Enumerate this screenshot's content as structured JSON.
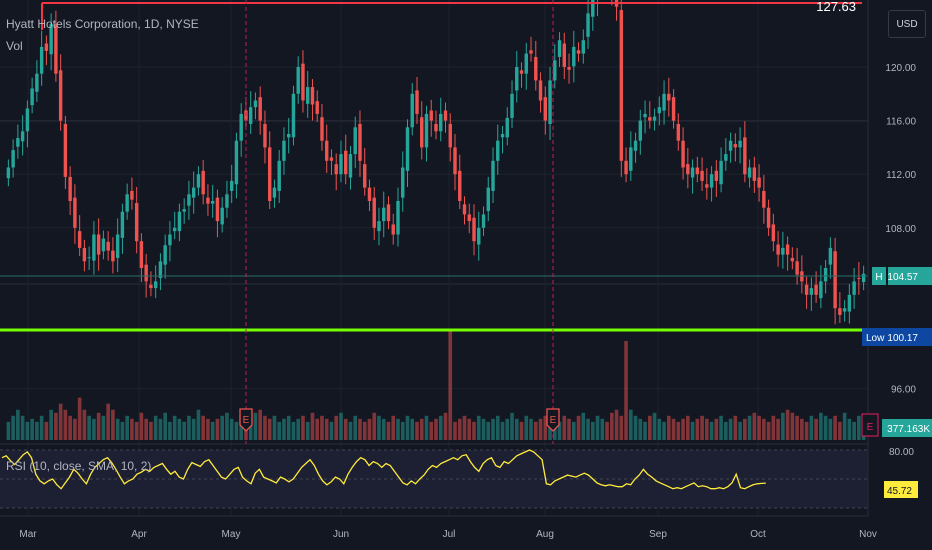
{
  "header": {
    "title": "Hyatt Hotels Corporation, 1D, NYSE",
    "volume_label": "Vol",
    "rsi_label": "RSI (10, close, SMA, 10, 2)",
    "currency": "USD"
  },
  "price_labels": {
    "resistance": "127.63",
    "current_prefix": "H",
    "current": "104.57",
    "low_prefix": "Low",
    "low": "100.17",
    "volume": "377.163K",
    "rsi_current": "45.72",
    "rsi_level": "80.00",
    "earnings_marker": "E"
  },
  "colors": {
    "background": "#131722",
    "up": "#26a69a",
    "down": "#ef5350",
    "resistance_line": "#f23645",
    "support_line": "#76ff03",
    "rsi_line": "#ffeb3b",
    "earnings": "#e91e63"
  },
  "chart_data": {
    "type": "candlestick",
    "price_ticks": [
      "120.00",
      "116.00",
      "112.00",
      "108.00",
      "96.00"
    ],
    "price_tick_values": [
      120,
      116,
      112,
      108,
      96
    ],
    "x_ticks": [
      "Mar",
      "Apr",
      "May",
      "Jun",
      "Jul",
      "Aug",
      "Sep",
      "Oct",
      "Nov"
    ],
    "resistance_level": 127.63,
    "support_level": 100.17,
    "last_price": 104.57,
    "last_volume": "377.163K",
    "rsi_last": 45.72,
    "rsi_bands": [
      80,
      50,
      20
    ],
    "earnings_months": [
      "May",
      "Aug"
    ],
    "close": [
      112.5,
      113.8,
      114.7,
      115.2,
      116.9,
      118.4,
      119.5,
      121.5,
      121.2,
      123.2,
      119.5,
      116.0,
      111.8,
      110.0,
      108.0,
      106.5,
      105.5,
      105.8,
      107.5,
      106.0,
      107.2,
      106.3,
      105.5,
      107.5,
      109.2,
      110.5,
      110.1,
      107.0,
      105.0,
      104.0,
      103.5,
      104.0,
      105.5,
      106.7,
      107.5,
      108.0,
      109.2,
      109.4,
      110.5,
      111.0,
      112.0,
      110.5,
      109.8,
      110.0,
      108.5,
      109.5,
      110.5,
      111.5,
      114.5,
      116.5,
      116.0,
      117.0,
      117.5,
      116.0,
      114.0,
      110.0,
      111.0,
      113.0,
      114.5,
      115.0,
      118.0,
      120.0,
      117.5,
      118.5,
      117.2,
      116.5,
      114.5,
      113.0,
      113.0,
      112.0,
      113.5,
      112.0,
      113.5,
      115.5,
      113.0,
      111.0,
      110.0,
      108.0,
      108.5,
      109.5,
      108.5,
      107.5,
      110.0,
      112.5,
      115.5,
      118.0,
      116.5,
      114.0,
      116.5,
      116.0,
      115.2,
      116.5,
      116.0,
      114.0,
      112.0,
      110.0,
      109.0,
      108.5,
      107.0,
      108.0,
      109.0,
      111.0,
      113.0,
      114.5,
      115.0,
      116.2,
      118.0,
      120.0,
      119.5,
      121.0,
      121.0,
      119.0,
      117.5,
      116.0,
      119.0,
      120.5,
      122.0,
      120.0,
      119.8,
      121.5,
      121.0,
      122.0,
      124.0,
      125.0,
      126.0,
      127.0,
      126.5,
      125.5,
      124.5,
      113.0,
      112.0,
      114.0,
      114.5,
      116.0,
      116.5,
      116.0,
      116.3,
      117.0,
      118.0,
      117.5,
      116.0,
      114.5,
      112.5,
      112.0,
      112.5,
      112.0,
      111.5,
      111.0,
      112.0,
      111.5,
      113.0,
      113.5,
      114.5,
      114.0,
      114.5,
      112.0,
      112.5,
      111.5,
      111.0,
      109.5,
      108.0,
      107.0,
      106.0,
      106.5,
      106.0,
      105.5,
      104.5,
      104.0,
      103.0,
      103.5,
      103.0,
      104.0,
      105.0,
      106.5,
      102.0,
      101.5,
      102.0,
      103.0,
      104.0,
      104.2,
      104.57
    ],
    "volume_relative": [
      0.3,
      0.4,
      0.5,
      0.4,
      0.3,
      0.35,
      0.3,
      0.4,
      0.3,
      0.5,
      0.45,
      0.6,
      0.5,
      0.4,
      0.35,
      0.7,
      0.5,
      0.4,
      0.35,
      0.45,
      0.4,
      0.6,
      0.5,
      0.35,
      0.3,
      0.4,
      0.35,
      0.3,
      0.45,
      0.35,
      0.3,
      0.4,
      0.35,
      0.45,
      0.3,
      0.4,
      0.35,
      0.3,
      0.4,
      0.35,
      0.5,
      0.4,
      0.35,
      0.3,
      0.35,
      0.4,
      0.45,
      0.35,
      0.3,
      0.4,
      0.35,
      0.3,
      0.45,
      0.5,
      0.4,
      0.35,
      0.4,
      0.3,
      0.35,
      0.4,
      0.3,
      0.35,
      0.4,
      0.3,
      0.45,
      0.35,
      0.4,
      0.35,
      0.3,
      0.4,
      0.45,
      0.35,
      0.3,
      0.4,
      0.35,
      0.3,
      0.35,
      0.45,
      0.4,
      0.35,
      0.3,
      0.4,
      0.35,
      0.3,
      0.4,
      0.35,
      0.3,
      0.35,
      0.4,
      0.3,
      0.35,
      0.4,
      0.45,
      1.0,
      0.3,
      0.35,
      0.4,
      0.35,
      0.3,
      0.4,
      0.35,
      0.3,
      0.35,
      0.4,
      0.3,
      0.35,
      0.45,
      0.35,
      0.3,
      0.4,
      0.35,
      0.3,
      0.35,
      0.4,
      0.45,
      0.35,
      0.3,
      0.4,
      0.35,
      0.3,
      0.4,
      0.45,
      0.35,
      0.3,
      0.4,
      0.35,
      0.3,
      0.45,
      0.5,
      0.4,
      0.9,
      0.5,
      0.4,
      0.35,
      0.3,
      0.4,
      0.45,
      0.35,
      0.3,
      0.4,
      0.35,
      0.3,
      0.35,
      0.4,
      0.3,
      0.35,
      0.4,
      0.35,
      0.3,
      0.35,
      0.4,
      0.3,
      0.35,
      0.4,
      0.3,
      0.35,
      0.4,
      0.45,
      0.4,
      0.35,
      0.3,
      0.4,
      0.35,
      0.45,
      0.5,
      0.45,
      0.4,
      0.35,
      0.3,
      0.4,
      0.35,
      0.45,
      0.4,
      0.35,
      0.4,
      0.3,
      0.45,
      0.35,
      0.3,
      0.4,
      0.35,
      0.3,
      0.35,
      0.4,
      0.4,
      0.3
    ],
    "rsi": [
      72,
      74,
      69,
      65,
      70,
      75,
      78,
      72,
      55,
      48,
      45,
      48,
      50,
      44,
      40,
      46,
      52,
      60,
      56,
      50,
      45,
      55,
      62,
      66,
      70,
      72,
      67,
      60,
      52,
      45,
      48,
      50,
      55,
      57,
      60,
      58,
      62,
      64,
      66,
      60,
      55,
      58,
      52,
      50,
      60,
      67,
      65,
      63,
      68,
      70,
      64,
      58,
      52,
      50,
      55,
      60,
      62,
      52,
      48,
      45,
      56,
      60,
      52,
      50,
      48,
      46,
      52,
      50,
      47,
      50,
      56,
      62,
      66,
      70,
      64,
      55,
      48,
      44,
      47,
      52,
      50,
      45,
      55,
      62,
      68,
      72,
      70,
      64,
      68,
      66,
      62,
      66,
      64,
      58,
      52,
      46,
      44,
      48,
      45,
      50,
      54,
      60,
      64,
      62,
      66,
      68,
      70,
      72,
      70,
      74,
      75,
      68,
      62,
      58,
      66,
      70,
      72,
      64,
      62,
      68,
      66,
      70,
      74,
      76,
      78,
      80,
      78,
      74,
      70,
      45,
      44,
      48,
      50,
      52,
      54,
      53,
      52,
      54,
      56,
      54,
      50,
      46,
      44,
      43,
      44,
      43,
      42,
      42,
      45,
      44,
      50,
      54,
      60,
      55,
      52,
      48,
      46,
      44,
      42,
      40,
      41,
      40,
      42,
      44,
      46,
      42,
      43,
      42,
      40,
      40,
      41,
      40,
      42,
      46,
      55,
      41,
      40,
      42,
      44,
      45,
      45.5,
      45.72
    ]
  }
}
